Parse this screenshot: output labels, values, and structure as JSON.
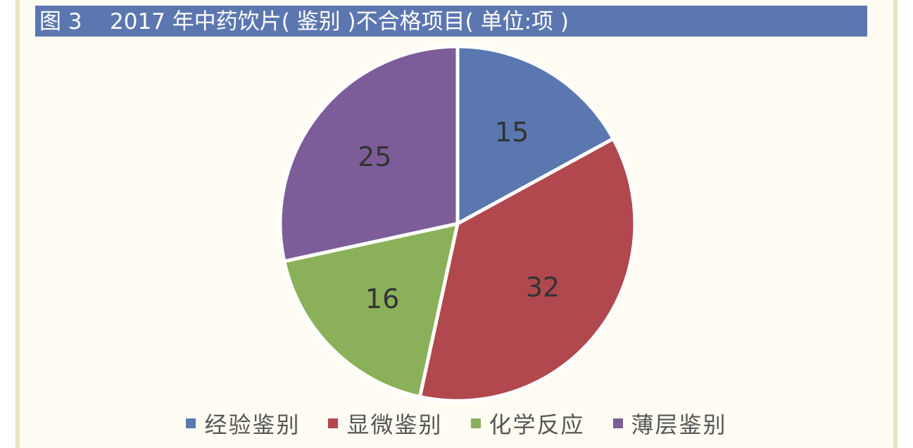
{
  "title": "图 3    2017 年中药饮片( 鉴别 )不合格项目( 单位:项 )",
  "colors": {
    "title_bg": "#5c77b0",
    "title_text": "#ffffff"
  },
  "chart_data": {
    "type": "pie",
    "title": "图 3    2017 年中药饮片( 鉴别 )不合格项目( 单位:项 )",
    "unit": "项",
    "categories": [
      "经验鉴别",
      "显微鉴别",
      "化学反应",
      "薄层鉴别"
    ],
    "values": [
      15,
      32,
      16,
      25
    ],
    "data_labels": [
      "15",
      "32",
      "16",
      "25"
    ],
    "colors": [
      "#5a77b0",
      "#b0484e",
      "#8bb05a",
      "#7d5d99"
    ],
    "start_angle": "12 o'clock",
    "direction": "clockwise",
    "legend": "bottom"
  }
}
